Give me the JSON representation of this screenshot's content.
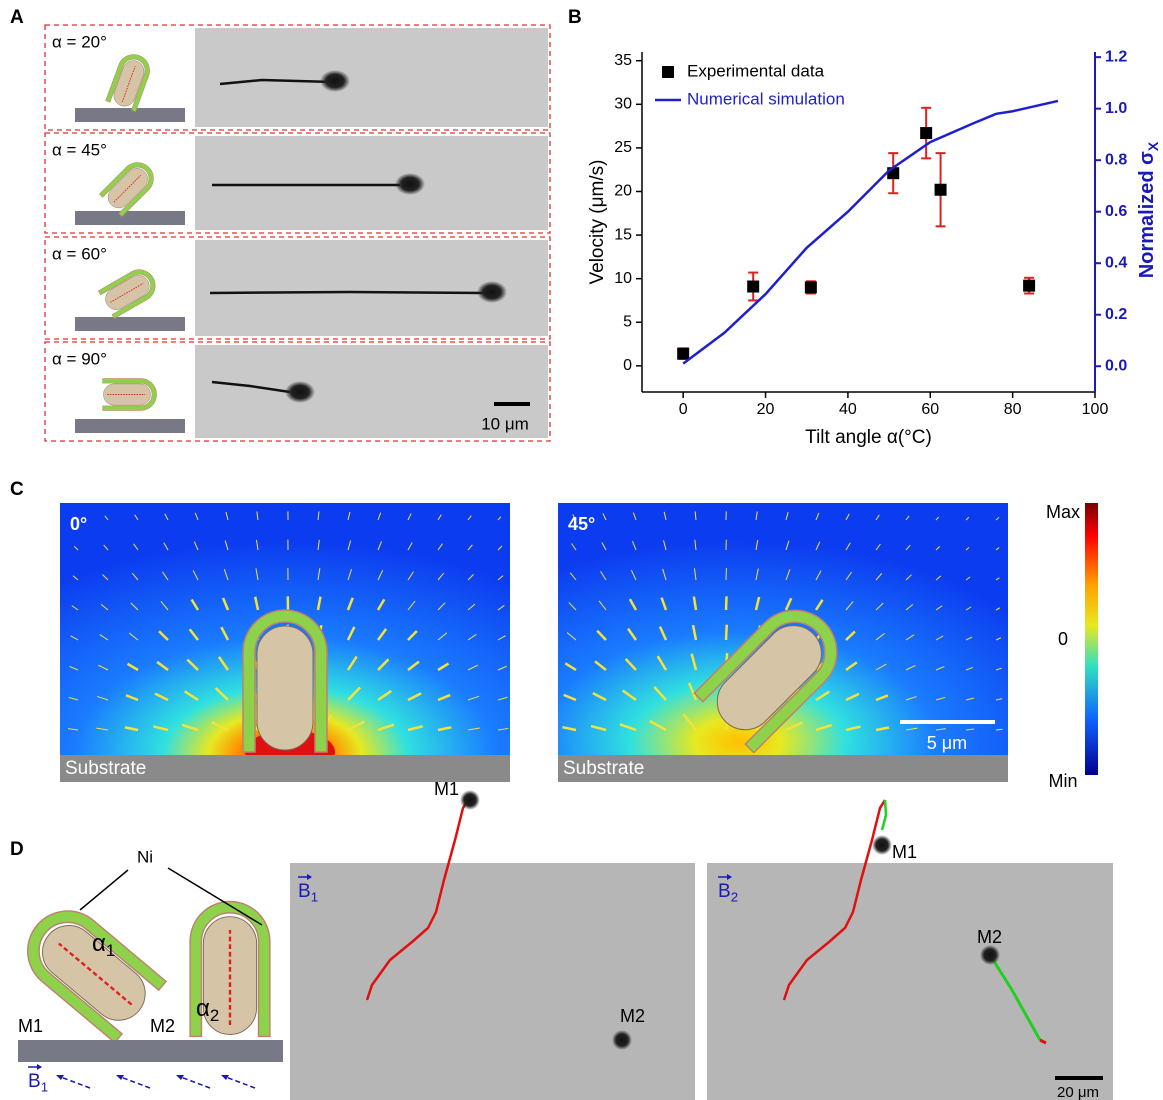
{
  "panel_labels": {
    "a": "A",
    "b": "B",
    "c": "C",
    "d": "D"
  },
  "panel_a": {
    "angle_labels": [
      "α = 20°",
      "α = 45°",
      "α = 60°",
      "α = 90°"
    ],
    "scale_bar": "10 μm"
  },
  "chart_data": {
    "type": "scatter",
    "xlabel": "Tilt angle α(°C)",
    "ylabel": "Velocity (μm/s)",
    "y2label": "Normalized σ",
    "y2label_sub": "X",
    "xlim": [
      -10,
      100
    ],
    "xticks": [
      0,
      20,
      40,
      60,
      80,
      100
    ],
    "ylim": [
      -3,
      36
    ],
    "yticks": [
      0,
      5,
      10,
      15,
      20,
      25,
      30,
      35
    ],
    "y2lim": [
      -0.1,
      1.22
    ],
    "y2ticks": [
      {
        "value": 0,
        "label": "0.0"
      },
      {
        "value": 0.2,
        "label": "0.2"
      },
      {
        "value": 0.4,
        "label": "0.4"
      },
      {
        "value": 0.6,
        "label": "0.6"
      },
      {
        "value": 0.8,
        "label": "0.8"
      },
      {
        "value": 1,
        "label": "1.0"
      },
      {
        "value": 1.2,
        "label": "1.2"
      }
    ],
    "y2color": "#1a1ab8",
    "grid": false,
    "legend": "upper left",
    "series": [
      {
        "name": "Experimental data",
        "type": "scatter",
        "color": "#000000",
        "error_color": "#e0201b",
        "x": [
          0,
          17,
          31,
          51,
          59,
          62.5,
          84
        ],
        "values": [
          1.4,
          9.1,
          9,
          22.1,
          26.7,
          20.2,
          9.2
        ],
        "errors": [
          0.6,
          1.6,
          0.7,
          2.3,
          2.9,
          4.2,
          0.9
        ]
      },
      {
        "name": "Numerical simulation",
        "type": "line",
        "color": "#1f1fd0",
        "axis": "y2",
        "x": [
          0,
          10,
          20,
          30,
          40,
          50,
          60,
          70,
          76,
          80,
          91
        ],
        "values": [
          0.01,
          0.13,
          0.28,
          0.46,
          0.6,
          0.76,
          0.87,
          0.94,
          0.98,
          0.99,
          1.03
        ]
      }
    ]
  },
  "panel_c": {
    "angle_labels": [
      "0°",
      "45°"
    ],
    "substrate": "Substrate",
    "scale_bar": "5 μm",
    "colorbar_labels": [
      "Max",
      "0",
      "Min"
    ]
  },
  "panel_d": {
    "ni": "Ni",
    "m1": "M1",
    "m2": "M2",
    "alpha": "α",
    "alpha_subs": [
      "1",
      "2"
    ],
    "field": "B",
    "field_subs": [
      "1",
      "1",
      "2"
    ],
    "scale_bar": "20 μm"
  }
}
